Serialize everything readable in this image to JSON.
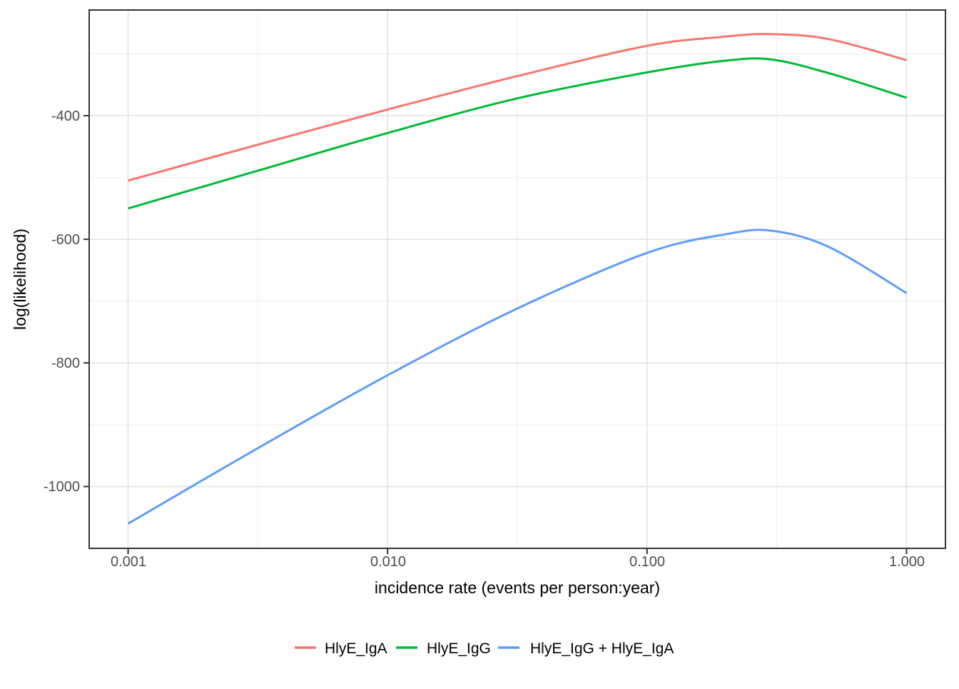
{
  "style": {
    "background": "#FFFFFF",
    "panel_background": "#FFFFFF",
    "panel_border": "#343434",
    "grid_major": "#E4E4E4",
    "grid_minor": "#F0F0F0",
    "tick_mark_color": "#333333",
    "tick_label_color": "#4D4D4D",
    "axis_title_color": "#000000",
    "series_stroke_width": 3,
    "legend_key_stroke_width": 3.5
  },
  "chart_data": {
    "type": "line",
    "title": "",
    "xlabel": "incidence rate (events per person:year)",
    "ylabel": "log(likelihood)",
    "x_scale": "log10",
    "x_domain_log10": [
      -3.15,
      0.15
    ],
    "y_domain": [
      -1100,
      -229
    ],
    "grid": true,
    "legend_position": "bottom",
    "x_ticks": [
      {
        "value": 0.001,
        "label": "0.001"
      },
      {
        "value": 0.01,
        "label": "0.010"
      },
      {
        "value": 0.1,
        "label": "0.100"
      },
      {
        "value": 1,
        "label": "1.000"
      }
    ],
    "x_minor_gridlines": [
      0.00316,
      0.0316,
      0.316
    ],
    "y_ticks": [
      {
        "value": -400,
        "label": "-400"
      },
      {
        "value": -600,
        "label": "-600"
      },
      {
        "value": -800,
        "label": "-800"
      },
      {
        "value": -1000,
        "label": "-1000"
      }
    ],
    "y_minor_gridlines": [
      -300,
      -500,
      -700,
      -900,
      -1100
    ],
    "series": [
      {
        "name": "HlyE_IgA",
        "color": "#F8766D",
        "points": [
          [
            0.001,
            -505
          ],
          [
            0.00316,
            -447
          ],
          [
            0.01,
            -390
          ],
          [
            0.0316,
            -336
          ],
          [
            0.1,
            -287
          ],
          [
            0.2,
            -272
          ],
          [
            0.3,
            -268
          ],
          [
            0.5,
            -276
          ],
          [
            1.0,
            -310
          ]
        ]
      },
      {
        "name": "HlyE_IgG",
        "color": "#00BA38",
        "points": [
          [
            0.001,
            -550
          ],
          [
            0.00316,
            -489
          ],
          [
            0.01,
            -428
          ],
          [
            0.0316,
            -372
          ],
          [
            0.1,
            -330
          ],
          [
            0.2,
            -311
          ],
          [
            0.3,
            -309
          ],
          [
            0.5,
            -331
          ],
          [
            1.0,
            -371
          ]
        ]
      },
      {
        "name": "HlyE_IgG + HlyE_IgA",
        "color": "#619CFF",
        "points": [
          [
            0.001,
            -1060
          ],
          [
            0.00316,
            -938
          ],
          [
            0.01,
            -820
          ],
          [
            0.0316,
            -712
          ],
          [
            0.1,
            -622
          ],
          [
            0.2,
            -592
          ],
          [
            0.3,
            -586
          ],
          [
            0.5,
            -612
          ],
          [
            1.0,
            -687
          ]
        ]
      }
    ]
  }
}
